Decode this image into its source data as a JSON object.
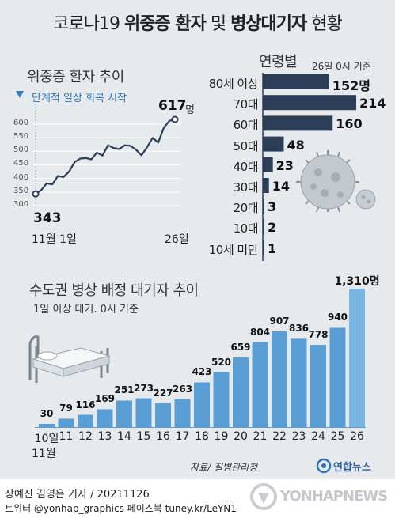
{
  "title": {
    "part1": "코로나19 ",
    "part2": "위중증 환자",
    "part3": " 및 ",
    "part4": "병상대기자",
    "part5": " 현황"
  },
  "colors": {
    "background": "#e6eaed",
    "navy": "#2c3e57",
    "blue": "#5a9ed6",
    "light_blue": "#7ab6e4"
  },
  "chart_data": [
    {
      "type": "line",
      "title": "위중증 환자 추이",
      "annotation": "단계적 일상 회복 시작",
      "y_ticks": [
        300,
        350,
        400,
        450,
        500,
        550,
        600
      ],
      "ylim": [
        300,
        620
      ],
      "x_start_label": "11월 1일",
      "x_end_label": "26일",
      "start_value": "343",
      "end_value": "617",
      "end_unit": "명",
      "x": [
        1,
        2,
        3,
        4,
        5,
        6,
        7,
        8,
        9,
        10,
        11,
        12,
        13,
        14,
        15,
        16,
        17,
        18,
        19,
        20,
        21,
        22,
        23,
        24,
        25,
        26
      ],
      "values": [
        343,
        357,
        382,
        378,
        409,
        405,
        425,
        460,
        473,
        475,
        470,
        495,
        484,
        522,
        512,
        508,
        522,
        520,
        506,
        485,
        515,
        549,
        532,
        586,
        612,
        617
      ]
    },
    {
      "type": "bar",
      "title": "연령별",
      "note": "26일 0시 기준",
      "categories": [
        "80세 이상",
        "70대",
        "60대",
        "50대",
        "40대",
        "30대",
        "20대",
        "10대",
        "10세 미만"
      ],
      "values": [
        152,
        214,
        160,
        48,
        23,
        14,
        3,
        2,
        1
      ],
      "value_labels": [
        "152명",
        "214",
        "160",
        "48",
        "23",
        "14",
        "3",
        "2",
        "1"
      ]
    },
    {
      "type": "bar",
      "title": "수도권 병상 배정 대기자 추이",
      "note": "1일 이상 대기. 0시 기준",
      "categories": [
        "10일",
        "11",
        "12",
        "13",
        "14",
        "15",
        "16",
        "17",
        "18",
        "19",
        "20",
        "21",
        "22",
        "23",
        "24",
        "25",
        "26"
      ],
      "values": [
        30,
        79,
        116,
        169,
        251,
        273,
        227,
        263,
        423,
        520,
        659,
        804,
        907,
        836,
        778,
        940,
        1310
      ],
      "value_labels": [
        "30",
        "79",
        "116",
        "169",
        "251",
        "273",
        "227",
        "263",
        "423",
        "520",
        "659",
        "804",
        "907",
        "836",
        "778",
        "940",
        "1,310명"
      ],
      "x_sub_label": "11월"
    }
  ],
  "source": "자료/ 질병관리청",
  "logo": "연합뉴스",
  "footer": {
    "byline": "장예진 김영은 기자 / 20211126",
    "sns": "트위터 @yonhap_graphics  페이스북 tuney.kr/LeYN1"
  },
  "watermark": "YONHAPNEWS"
}
